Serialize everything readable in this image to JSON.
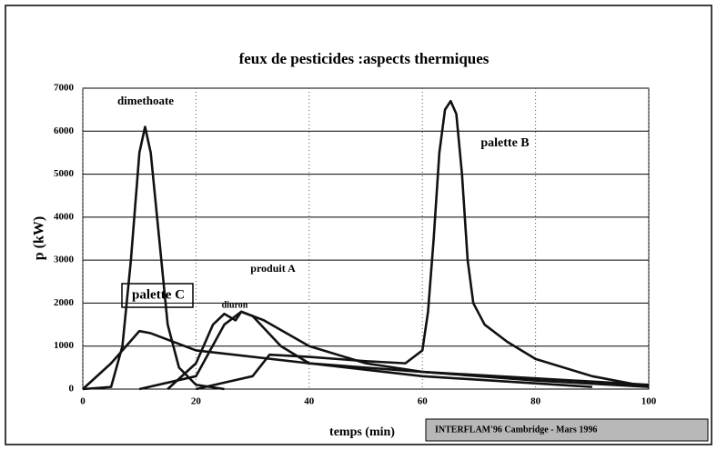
{
  "chart_data": {
    "type": "line",
    "title": "feux de pesticides :aspects thermiques",
    "x_label": "temps (min)",
    "y_label": "p (kW)",
    "footer": "INTERFLAM'96 Cambridge - Mars 1996",
    "xlim": [
      0,
      100
    ],
    "xticks": [
      0,
      20,
      40,
      60,
      80,
      100
    ],
    "ylim": [
      0,
      7000
    ],
    "yticks": [
      0,
      1000,
      2000,
      3000,
      4000,
      5000,
      6000,
      7000
    ],
    "grid": true,
    "series": [
      {
        "name": "dimethoate",
        "color": "#111111",
        "x": [
          0,
          5,
          7,
          8.5,
          10,
          11,
          12,
          13.5,
          15,
          17,
          20,
          25
        ],
        "values": [
          0,
          50,
          1000,
          3000,
          5500,
          6100,
          5500,
          3500,
          1500,
          500,
          100,
          0
        ]
      },
      {
        "name": "palette B",
        "color": "#111111",
        "x": [
          20,
          30,
          33,
          40,
          50,
          57,
          60,
          61,
          62,
          63,
          64,
          65,
          66,
          67,
          68,
          69,
          71,
          75,
          80,
          90,
          100
        ],
        "values": [
          0,
          300,
          800,
          750,
          650,
          600,
          900,
          1800,
          3500,
          5500,
          6500,
          6700,
          6400,
          5000,
          3000,
          2000,
          1500,
          1100,
          700,
          300,
          50
        ]
      },
      {
        "name": "palette C",
        "color": "#111111",
        "x": [
          0,
          5,
          10,
          12,
          20,
          40,
          60,
          80,
          100
        ],
        "values": [
          0,
          600,
          1350,
          1300,
          900,
          600,
          400,
          250,
          100
        ]
      },
      {
        "name": "produit A",
        "color": "#111111",
        "x": [
          10,
          20,
          25,
          28,
          32,
          40,
          50,
          60,
          80,
          100
        ],
        "values": [
          0,
          300,
          1500,
          1800,
          1600,
          1000,
          600,
          400,
          200,
          50
        ]
      },
      {
        "name": "diuron",
        "color": "#111111",
        "x": [
          15,
          20,
          23,
          25,
          27,
          28,
          30,
          35,
          40,
          60,
          90
        ],
        "values": [
          0,
          600,
          1500,
          1750,
          1600,
          1800,
          1700,
          1000,
          600,
          300,
          50
        ]
      }
    ]
  }
}
